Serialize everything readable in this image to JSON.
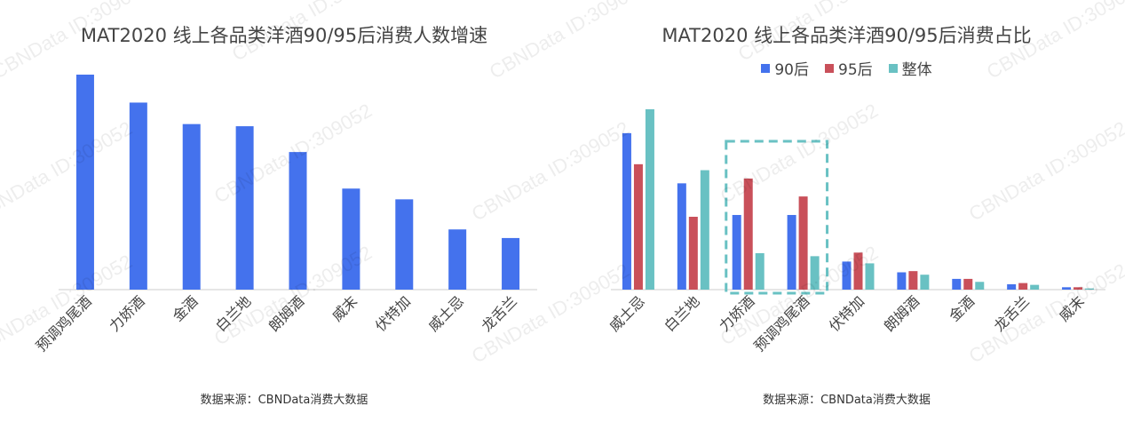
{
  "watermark_text": "CBNData ID:309052",
  "colors": {
    "blue": "#4472ed",
    "red": "#c9505a",
    "teal": "#69c1c3",
    "axis": "#cccccc",
    "highlight": "#69c1c3"
  },
  "chart_data": [
    {
      "type": "bar",
      "title": "MAT2020 线上各品类洋酒90/95后消费人数增速",
      "source": "数据来源：CBNData消费大数据",
      "categories": [
        "预调鸡尾酒",
        "力娇酒",
        "金酒",
        "白兰地",
        "朗姆酒",
        "威末",
        "伏特加",
        "威士忌",
        "龙舌兰"
      ],
      "values": [
        100,
        87,
        77,
        76,
        64,
        47,
        42,
        28,
        24
      ],
      "ylim": [
        0,
        100
      ],
      "grid": false
    },
    {
      "type": "bar",
      "title": "MAT2020 线上各品类洋酒90/95后消费占比",
      "source": "数据来源：CBNData消费大数据",
      "legend_position": "top-center",
      "categories": [
        "威士忌",
        "白兰地",
        "力娇酒",
        "预调鸡尾酒",
        "伏特加",
        "朗姆酒",
        "金酒",
        "龙舌兰",
        "威末"
      ],
      "series": [
        {
          "name": "90后",
          "color": "#4472ed",
          "values": [
            26.2,
            17.8,
            12.5,
            12.5,
            4.7,
            2.9,
            1.8,
            0.9,
            0.4
          ]
        },
        {
          "name": "95后",
          "color": "#c9505a",
          "values": [
            21.0,
            12.2,
            18.6,
            15.6,
            6.2,
            3.1,
            1.8,
            1.1,
            0.4
          ]
        },
        {
          "name": "整体",
          "color": "#69c1c3",
          "values": [
            30.2,
            20.0,
            6.1,
            5.6,
            4.4,
            2.5,
            1.3,
            0.8,
            0.2
          ]
        }
      ],
      "ylim": [
        0,
        30.2
      ],
      "grid": false,
      "highlighted_categories": [
        "力娇酒",
        "预调鸡尾酒"
      ]
    }
  ]
}
